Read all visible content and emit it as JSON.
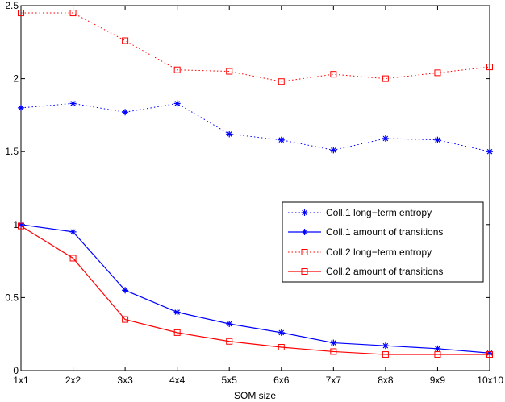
{
  "chart_data": {
    "type": "line",
    "categories": [
      "1x1",
      "2x2",
      "3x3",
      "4x4",
      "5x5",
      "6x6",
      "7x7",
      "8x8",
      "9x9",
      "10x10"
    ],
    "xlabel": "SOM size",
    "ylabel": "",
    "ylim": [
      0,
      2.5
    ],
    "yticks": [
      "0",
      "0.5",
      "1",
      "1.5",
      "2",
      "2.5"
    ],
    "grid": false,
    "legend_position": "center-right",
    "series": [
      {
        "name": "Coll.1 long−term entropy",
        "color": "#0000ff",
        "line_style": "dotted",
        "marker": "asterisk",
        "values": [
          1.8,
          1.83,
          1.77,
          1.83,
          1.62,
          1.58,
          1.51,
          1.59,
          1.58,
          1.5
        ]
      },
      {
        "name": "Coll.1 amount of transitions",
        "color": "#0000ff",
        "line_style": "solid",
        "marker": "asterisk",
        "values": [
          1.0,
          0.95,
          0.55,
          0.4,
          0.32,
          0.26,
          0.19,
          0.17,
          0.15,
          0.12
        ]
      },
      {
        "name": "Coll.2 long−term entropy",
        "color": "#ff0000",
        "line_style": "dotted",
        "marker": "square",
        "values": [
          2.45,
          2.45,
          2.26,
          2.06,
          2.05,
          1.98,
          2.03,
          2.0,
          2.04,
          2.08
        ]
      },
      {
        "name": "Coll.2 amount of transitions",
        "color": "#ff0000",
        "line_style": "solid",
        "marker": "square",
        "values": [
          0.99,
          0.77,
          0.35,
          0.26,
          0.2,
          0.16,
          0.13,
          0.11,
          0.11,
          0.11
        ]
      }
    ]
  }
}
